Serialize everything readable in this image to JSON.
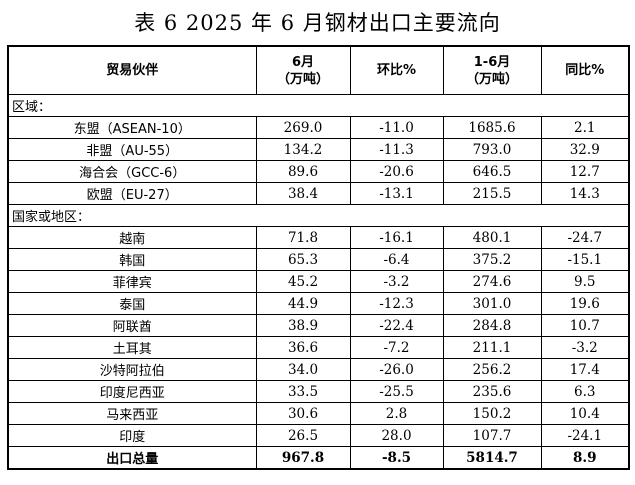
{
  "title": "表 6   2025 年 6 月钢材出口主要流向",
  "headers": {
    "partner": "贸易伙伴",
    "june_line1": "6月",
    "june_line2": "（万吨）",
    "mom": "环比%",
    "ytd_line1": "1-6月",
    "ytd_line2": "（万吨）",
    "yoy": "同比%"
  },
  "sections": {
    "region": "区域：",
    "country": "国家或地区："
  },
  "regions": [
    {
      "name": "东盟（ASEAN-10）",
      "june": "269.0",
      "mom": "-11.0",
      "ytd": "1685.6",
      "yoy": "2.1"
    },
    {
      "name": "非盟（AU-55）",
      "june": "134.2",
      "mom": "-11.3",
      "ytd": "793.0",
      "yoy": "32.9"
    },
    {
      "name": "海合会（GCC-6）",
      "june": "89.6",
      "mom": "-20.6",
      "ytd": "646.5",
      "yoy": "12.7"
    },
    {
      "name": "欧盟（EU-27）",
      "june": "38.4",
      "mom": "-13.1",
      "ytd": "215.5",
      "yoy": "14.3"
    }
  ],
  "countries": [
    {
      "name": "越南",
      "june": "71.8",
      "mom": "-16.1",
      "ytd": "480.1",
      "yoy": "-24.7"
    },
    {
      "name": "韩国",
      "june": "65.3",
      "mom": "-6.4",
      "ytd": "375.2",
      "yoy": "-15.1"
    },
    {
      "name": "菲律宾",
      "june": "45.2",
      "mom": "-3.2",
      "ytd": "274.6",
      "yoy": "9.5"
    },
    {
      "name": "泰国",
      "june": "44.9",
      "mom": "-12.3",
      "ytd": "301.0",
      "yoy": "19.6"
    },
    {
      "name": "阿联酋",
      "june": "38.9",
      "mom": "-22.4",
      "ytd": "284.8",
      "yoy": "10.7"
    },
    {
      "name": "土耳其",
      "june": "36.6",
      "mom": "-7.2",
      "ytd": "211.1",
      "yoy": "-3.2"
    },
    {
      "name": "沙特阿拉伯",
      "june": "34.0",
      "mom": "-26.0",
      "ytd": "256.2",
      "yoy": "17.4"
    },
    {
      "name": "印度尼西亚",
      "june": "33.5",
      "mom": "-25.5",
      "ytd": "235.6",
      "yoy": "6.3"
    },
    {
      "name": "马来西亚",
      "june": "30.6",
      "mom": "2.8",
      "ytd": "150.2",
      "yoy": "10.4"
    },
    {
      "name": "印度",
      "june": "26.5",
      "mom": "28.0",
      "ytd": "107.7",
      "yoy": "-24.1"
    }
  ],
  "total": {
    "name": "出口总量",
    "june": "967.8",
    "mom": "-8.5",
    "ytd": "5814.7",
    "yoy": "8.9"
  }
}
